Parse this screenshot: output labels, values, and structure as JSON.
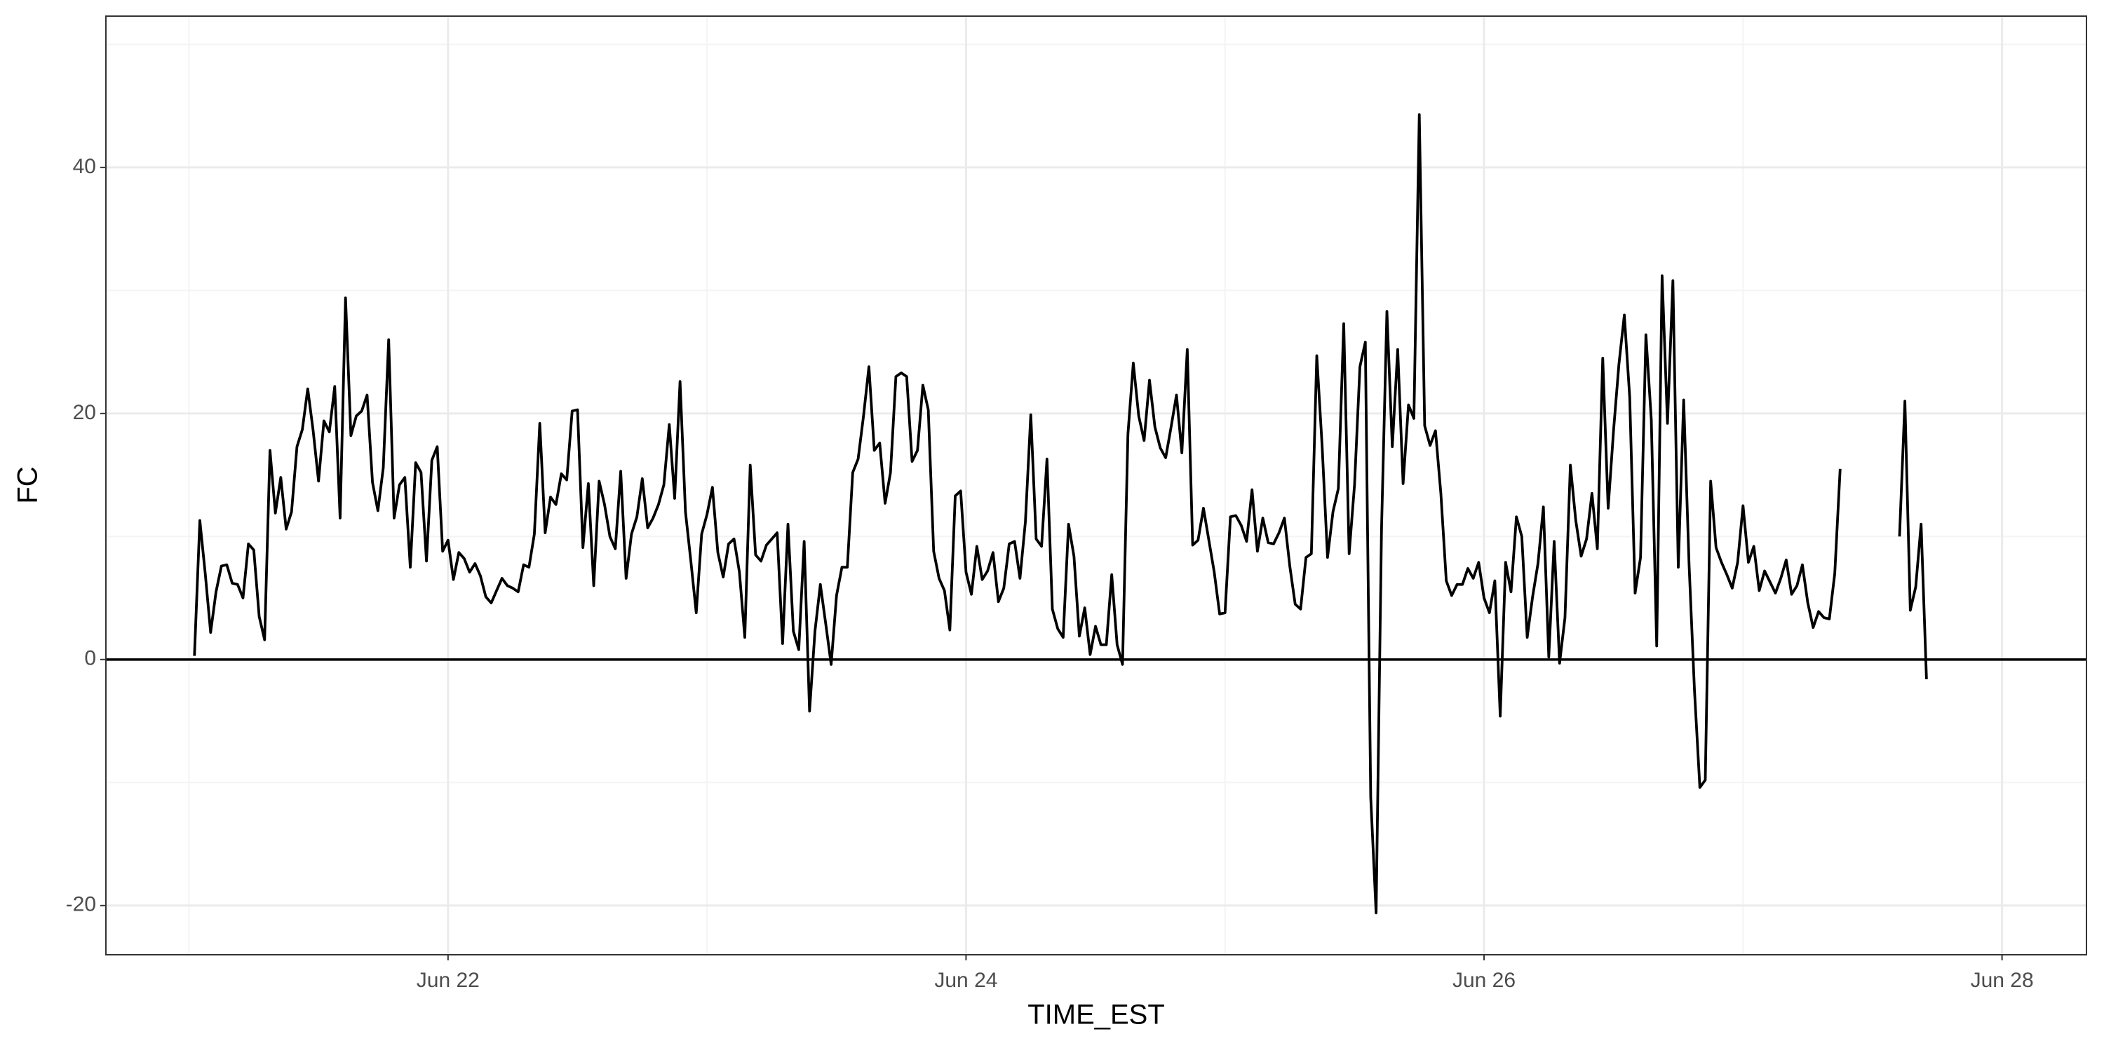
{
  "chart_data": {
    "type": "line",
    "x_label": "TIME_EST",
    "y_label": "FC",
    "color": "#000000",
    "grid": true,
    "hline": 0,
    "xlim": [
      20.679,
      28.326
    ],
    "ylim": [
      -24,
      52.3
    ],
    "xticks": [
      {
        "value": 22,
        "label": "Jun 22"
      },
      {
        "value": 24,
        "label": "Jun 24"
      },
      {
        "value": 26,
        "label": "Jun 26"
      },
      {
        "value": 28,
        "label": "Jun 28"
      }
    ],
    "minor_xticks": [
      21,
      23,
      25,
      27
    ],
    "yticks": [
      -20,
      0,
      20,
      40
    ],
    "minor_yticks": [
      -10,
      10,
      30,
      50
    ],
    "x": [
      21.0208,
      21.0417,
      21.0625,
      21.0833,
      21.1042,
      21.125,
      21.1458,
      21.1667,
      21.1875,
      21.2083,
      21.2292,
      21.25,
      21.2708,
      21.2917,
      21.3125,
      21.3333,
      21.3542,
      21.375,
      21.3958,
      21.4167,
      21.4375,
      21.4583,
      21.4792,
      21.5,
      21.5208,
      21.5417,
      21.5625,
      21.5833,
      21.6042,
      21.625,
      21.6458,
      21.6667,
      21.6875,
      21.7083,
      21.7292,
      21.75,
      21.7708,
      21.7917,
      21.8125,
      21.8333,
      21.8542,
      21.875,
      21.8958,
      21.9167,
      21.9375,
      21.9583,
      21.9792,
      22,
      22.0208,
      22.0417,
      22.0625,
      22.0833,
      22.1042,
      22.125,
      22.1458,
      22.1667,
      22.1875,
      22.2083,
      22.2292,
      22.25,
      22.2708,
      22.2917,
      22.3125,
      22.3333,
      22.3542,
      22.375,
      22.3958,
      22.4167,
      22.4375,
      22.4583,
      22.4792,
      22.5,
      22.5208,
      22.5417,
      22.5625,
      22.5833,
      22.6042,
      22.625,
      22.6458,
      22.6667,
      22.6875,
      22.7083,
      22.7292,
      22.75,
      22.7708,
      22.7917,
      22.8125,
      22.8333,
      22.8542,
      22.875,
      22.8958,
      22.9167,
      22.9375,
      22.9583,
      22.9792,
      23,
      23.0208,
      23.0417,
      23.0625,
      23.0833,
      23.1042,
      23.125,
      23.1458,
      23.1667,
      23.1875,
      23.2083,
      23.2292,
      23.25,
      23.2708,
      23.2917,
      23.3125,
      23.3333,
      23.3542,
      23.375,
      23.3958,
      23.4167,
      23.4375,
      23.4583,
      23.4792,
      23.5,
      23.5208,
      23.5417,
      23.5625,
      23.5833,
      23.6042,
      23.625,
      23.6458,
      23.6667,
      23.6875,
      23.7083,
      23.7292,
      23.75,
      23.7708,
      23.7917,
      23.8125,
      23.8333,
      23.8542,
      23.875,
      23.8958,
      23.9167,
      23.9375,
      23.9583,
      23.9792,
      24,
      24.0208,
      24.0417,
      24.0625,
      24.0833,
      24.1042,
      24.125,
      24.1458,
      24.1667,
      24.1875,
      24.2083,
      24.2292,
      24.25,
      24.2708,
      24.2917,
      24.3125,
      24.3333,
      24.3542,
      24.375,
      24.3958,
      24.4167,
      24.4375,
      24.4583,
      24.4792,
      24.5,
      24.5208,
      24.5417,
      24.5625,
      24.5833,
      24.6042,
      24.625,
      24.6458,
      24.6667,
      24.6875,
      24.7083,
      24.7292,
      24.75,
      24.7708,
      24.7917,
      24.8125,
      24.8333,
      24.8542,
      24.875,
      24.8958,
      24.9167,
      24.9375,
      24.9583,
      24.9792,
      25,
      25.0208,
      25.0417,
      25.0625,
      25.0833,
      25.1042,
      25.125,
      25.1458,
      25.1667,
      25.1875,
      25.2083,
      25.2292,
      25.25,
      25.2708,
      25.2917,
      25.3125,
      25.3333,
      25.3542,
      25.375,
      25.3958,
      25.4167,
      25.4375,
      25.4583,
      25.4792,
      25.5,
      25.5208,
      25.5417,
      25.5625,
      25.5833,
      25.6042,
      25.625,
      25.6458,
      25.6667,
      25.6875,
      25.7083,
      25.7292,
      25.75,
      25.7708,
      25.7917,
      25.8125,
      25.8333,
      25.8542,
      25.875,
      25.8958,
      25.9167,
      25.9375,
      25.9583,
      25.9792,
      26,
      26.0208,
      26.0417,
      26.0625,
      26.0833,
      26.1042,
      26.125,
      26.1458,
      26.1667,
      26.1875,
      26.2083,
      26.2292,
      26.25,
      26.2708,
      26.2917,
      26.3125,
      26.3333,
      26.3542,
      26.375,
      26.3958,
      26.4167,
      26.4375,
      26.4583,
      26.4792,
      26.5,
      26.5208,
      26.5417,
      26.5625,
      26.5833,
      26.6042,
      26.625,
      26.6458,
      26.6667,
      26.6875,
      26.7083,
      26.7292,
      26.75,
      26.7708,
      26.7917,
      26.8125,
      26.8333,
      26.8542,
      26.875,
      26.8958,
      26.9167,
      26.9375,
      26.9583,
      26.9792,
      27,
      27.0208,
      27.0417,
      27.0625,
      27.0833,
      27.1042,
      27.125,
      27.1458,
      27.1667,
      27.1875,
      27.2083,
      27.2292,
      27.25,
      27.2708,
      27.2917,
      27.3125,
      27.3333,
      27.3542,
      27.375,
      27.3958,
      27.4167,
      27.4375,
      27.4583,
      27.4792,
      27.5,
      27.5208,
      27.5417,
      27.5625,
      27.5833,
      27.6042,
      27.625,
      27.6458,
      27.6667,
      27.6875,
      27.7083
    ],
    "values": [
      0.3,
      11.3,
      7,
      2.2,
      5.5,
      7.6,
      7.7,
      6.2,
      6.1,
      5,
      9.4,
      8.9,
      3.5,
      1.6,
      17,
      11.9,
      14.8,
      10.6,
      12,
      17.3,
      18.7,
      22,
      18.6,
      14.5,
      19.4,
      18.5,
      22.2,
      11.5,
      29.4,
      18.2,
      19.8,
      20.2,
      21.5,
      14.4,
      12.1,
      15.6,
      26,
      11.5,
      14.2,
      14.8,
      7.5,
      16,
      15.2,
      8,
      16.2,
      17.3,
      8.8,
      9.7,
      6.5,
      8.7,
      8.2,
      7.1,
      7.8,
      6.8,
      5.1,
      4.6,
      5.6,
      6.6,
      6,
      5.8,
      5.5,
      7.7,
      7.5,
      10.2,
      19.2,
      10.3,
      13.2,
      12.6,
      15.1,
      14.6,
      20.2,
      20.3,
      9.1,
      14.3,
      6,
      14.5,
      12.6,
      10,
      9,
      15.3,
      6.6,
      10.2,
      11.6,
      14.7,
      10.7,
      11.5,
      12.6,
      14.2,
      19.1,
      13.1,
      22.6,
      12,
      8,
      3.8,
      10.2,
      11.8,
      14,
      8.7,
      6.7,
      9.4,
      9.8,
      7.1,
      1.8,
      15.8,
      8.5,
      8,
      9.3,
      9.8,
      10.3,
      1.3,
      11,
      2.3,
      0.8,
      9.6,
      -4.2,
      2.3,
      6.1,
      2.9,
      -0.4,
      5.2,
      7.5,
      7.5,
      15.2,
      16.3,
      19.8,
      23.8,
      17,
      17.6,
      12.7,
      15.2,
      23,
      23.3,
      23,
      16.1,
      17,
      22.3,
      20.3,
      8.8,
      6.6,
      5.6,
      2.4,
      13.3,
      13.7,
      7.1,
      5.3,
      9.2,
      6.5,
      7.2,
      8.7,
      4.7,
      5.8,
      9.4,
      9.6,
      6.6,
      11.2,
      19.9,
      9.8,
      9.2,
      16.3,
      4.1,
      2.5,
      1.8,
      11,
      8.4,
      1.9,
      4.2,
      0.4,
      2.7,
      1.2,
      1.2,
      6.9,
      1.2,
      -0.4,
      18.3,
      24.1,
      19.8,
      17.8,
      22.7,
      18.9,
      17.2,
      16.4,
      18.9,
      21.5,
      16.8,
      25.2,
      9.3,
      9.7,
      12.3,
      9.7,
      7.1,
      3.7,
      3.8,
      11.6,
      11.7,
      10.9,
      9.6,
      13.8,
      8.8,
      11.5,
      9.5,
      9.4,
      10.3,
      11.5,
      7.6,
      4.5,
      4.1,
      8.3,
      8.6,
      24.7,
      17.3,
      8.3,
      12,
      13.9,
      27.3,
      8.6,
      14.2,
      23.8,
      25.8,
      -11.2,
      -20.6,
      10.6,
      28.3,
      17.3,
      25.2,
      14.3,
      20.7,
      19.6,
      44.3,
      19,
      17.4,
      18.6,
      13.5,
      6.4,
      5.2,
      6.1,
      6.1,
      7.4,
      6.6,
      7.9,
      5,
      3.8,
      6.4,
      -4.6,
      7.9,
      5.5,
      11.6,
      10,
      1.8,
      5.1,
      7.8,
      12.4,
      0.2,
      9.6,
      -0.3,
      3.4,
      15.8,
      11.3,
      8.4,
      9.8,
      13.5,
      9,
      24.5,
      12.3,
      18.6,
      24,
      28,
      21.3,
      5.4,
      8.3,
      26.4,
      19.5,
      1.1,
      31.2,
      19.2,
      30.8,
      7.5,
      21.1,
      7.7,
      -2.5,
      -10.4,
      -9.8,
      14.5,
      9.1,
      7.9,
      6.9,
      5.8,
      7.9,
      12.5,
      7.9,
      9.2,
      5.6,
      7.2,
      6.3,
      5.4,
      6.6,
      8.1,
      5.3,
      6,
      7.7,
      4.6,
      2.6,
      3.9,
      3.4,
      3.3,
      7,
      15.5,
      null,
      null,
      null,
      null,
      null,
      null,
      null,
      null,
      null,
      null,
      10,
      21,
      4,
      5.9,
      11,
      -1.6
    ]
  }
}
